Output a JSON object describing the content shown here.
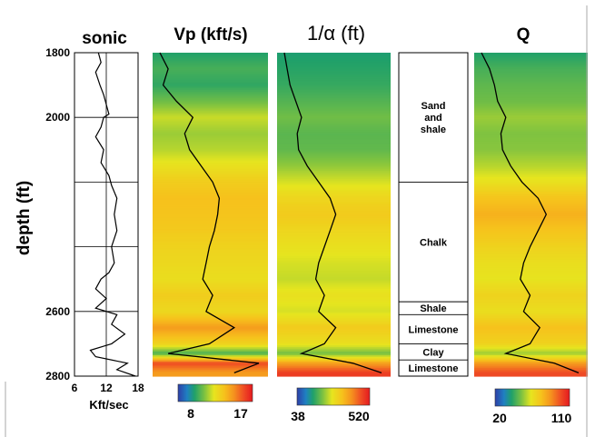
{
  "chart_data": [
    {
      "type": "line",
      "title": "sonic",
      "xlabel": "Kft/sec",
      "ylabel": "depth (ft)",
      "xlim": [
        6,
        18
      ],
      "ylim": [
        1800,
        2800
      ],
      "x_ticks": [
        "6",
        "12",
        "18"
      ],
      "y_ticks": [
        "1800",
        "2000",
        "2600",
        "2800"
      ],
      "series": [
        {
          "depth": [
            1800,
            1830,
            1860,
            1900,
            1930,
            1960,
            1990,
            2000,
            2030,
            2060,
            2100,
            2140,
            2180,
            2210,
            2250,
            2300,
            2350,
            2400,
            2450,
            2480,
            2500,
            2530,
            2560,
            2590,
            2610,
            2640,
            2670,
            2700,
            2720,
            2740,
            2760,
            2780,
            2800
          ],
          "values": [
            10.5,
            11.0,
            10.0,
            10.8,
            11.5,
            12.0,
            12.5,
            11.5,
            11.0,
            10.0,
            11.5,
            11.0,
            12.5,
            13.0,
            14.0,
            13.5,
            14.0,
            13.0,
            13.5,
            12.5,
            11.0,
            10.0,
            12.0,
            10.0,
            14.0,
            13.0,
            15.5,
            13.0,
            9.0,
            10.0,
            16.0,
            14.0,
            17.5
          ]
        }
      ]
    },
    {
      "type": "heatmap",
      "title": "Vp (kft/s)",
      "colorbar": {
        "min": 8,
        "max": 17,
        "min_label": "8",
        "max_label": "17"
      },
      "series": [
        {
          "depth": [
            1800,
            1850,
            1900,
            1950,
            2000,
            2050,
            2100,
            2150,
            2200,
            2250,
            2300,
            2350,
            2400,
            2450,
            2500,
            2550,
            2600,
            2650,
            2700,
            2730,
            2760,
            2790
          ],
          "values": [
            10.0,
            10.5,
            10.2,
            11.0,
            12.0,
            11.5,
            11.8,
            12.5,
            13.2,
            13.6,
            13.5,
            13.3,
            13.0,
            12.8,
            12.6,
            13.2,
            12.8,
            14.5,
            13.0,
            10.5,
            16.0,
            14.5
          ]
        }
      ]
    },
    {
      "type": "heatmap",
      "title": "1/α (ft)",
      "colorbar": {
        "min": 38,
        "max": 520,
        "min_label": "38",
        "max_label": "520"
      },
      "series": [
        {
          "depth": [
            1800,
            1850,
            1900,
            1950,
            2000,
            2050,
            2100,
            2150,
            2200,
            2250,
            2300,
            2350,
            2400,
            2450,
            2500,
            2550,
            2600,
            2650,
            2700,
            2730,
            2760,
            2790
          ],
          "values": [
            140,
            150,
            160,
            180,
            200,
            185,
            190,
            220,
            260,
            300,
            320,
            300,
            280,
            260,
            250,
            280,
            260,
            320,
            280,
            200,
            380,
            480
          ]
        }
      ]
    },
    {
      "type": "table",
      "title": "",
      "layers": [
        {
          "label": "Sand and shale",
          "lines": [
            "Sand",
            "and",
            "shale"
          ],
          "top": 1800,
          "bottom": 2200
        },
        {
          "label": "Chalk",
          "lines": [
            "Chalk"
          ],
          "top": 2200,
          "bottom": 2570
        },
        {
          "label": "Shale",
          "lines": [
            "Shale"
          ],
          "top": 2570,
          "bottom": 2610
        },
        {
          "label": "Limestone",
          "lines": [
            "Limestone"
          ],
          "top": 2610,
          "bottom": 2700
        },
        {
          "label": "Clay",
          "lines": [
            "Clay"
          ],
          "top": 2700,
          "bottom": 2750
        },
        {
          "label": "Limestone",
          "lines": [
            "Limestone"
          ],
          "top": 2750,
          "bottom": 2800
        }
      ]
    },
    {
      "type": "heatmap",
      "title": "Q",
      "colorbar": {
        "min": 20,
        "max": 110,
        "min_label": "20",
        "max_label": "110"
      },
      "series": [
        {
          "depth": [
            1800,
            1850,
            1900,
            1950,
            2000,
            2050,
            2100,
            2150,
            2200,
            2250,
            2300,
            2350,
            2400,
            2450,
            2500,
            2550,
            2600,
            2650,
            2700,
            2730,
            2760,
            2790
          ],
          "values": [
            40,
            45,
            48,
            50,
            55,
            52,
            53,
            58,
            65,
            75,
            80,
            75,
            70,
            66,
            64,
            70,
            66,
            76,
            70,
            55,
            85,
            100
          ]
        }
      ]
    }
  ]
}
